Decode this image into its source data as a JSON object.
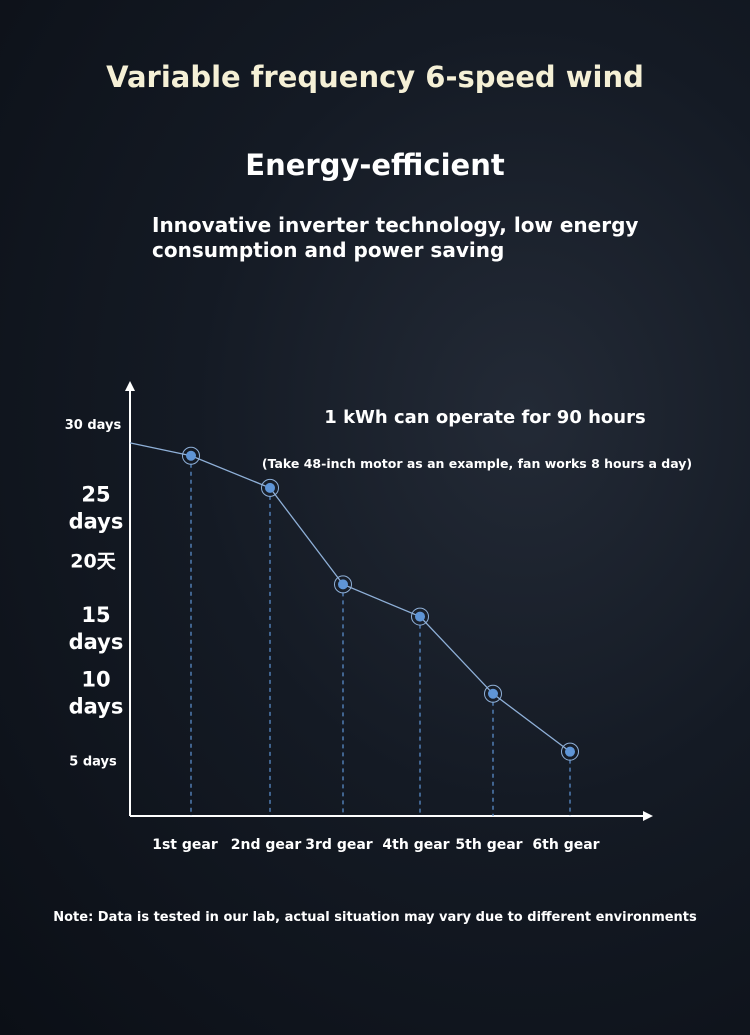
{
  "header": {
    "title": "Variable frequency 6-speed wind",
    "subtitle": "Energy-efficient",
    "description": "Innovative inverter technology, low energy consumption and power saving"
  },
  "note": "Note: Data is tested in our lab, actual situation may vary due to different environments",
  "colors": {
    "line": "#8fb0d8",
    "point": "#5f95d6",
    "axis": "#ffffff",
    "title": "#f5f0d6"
  },
  "chart_data": {
    "type": "line",
    "title": "",
    "annotations": [
      "1 kWh can operate for 90 hours",
      "(Take 48-inch motor as an example, fan works 8 hours a day)"
    ],
    "y_tick_labels": [
      "30 days",
      "25 days",
      "20天",
      "15 days",
      "10 days",
      "5 days"
    ],
    "y_tick_values": [
      30,
      25,
      20,
      15,
      10,
      5
    ],
    "categories": [
      "1st gear",
      "2nd gear",
      "3rd gear",
      "4th gear",
      "5th gear",
      "6th gear"
    ],
    "series": [
      {
        "values": [
          28,
          25.5,
          18,
          15.5,
          9.5,
          5
        ]
      }
    ],
    "line_start_value": 29,
    "ylim": [
      0,
      33
    ],
    "grid": false,
    "legend": "none"
  }
}
